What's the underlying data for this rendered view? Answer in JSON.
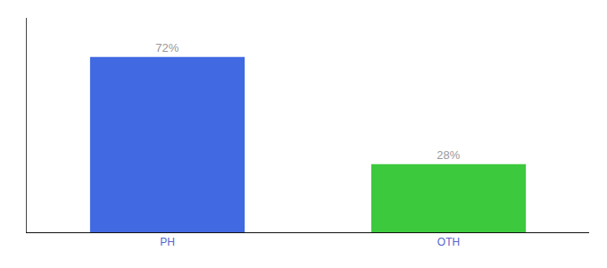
{
  "chart_data": {
    "type": "bar",
    "categories": [
      "PH",
      "OTH"
    ],
    "values": [
      72,
      28
    ],
    "value_labels": [
      "72%",
      "28%"
    ],
    "colors": [
      "#4169E1",
      "#3DC93D"
    ],
    "ylim": [
      0,
      88
    ],
    "data_labels": true,
    "tick_labels": "x",
    "grid": false
  }
}
